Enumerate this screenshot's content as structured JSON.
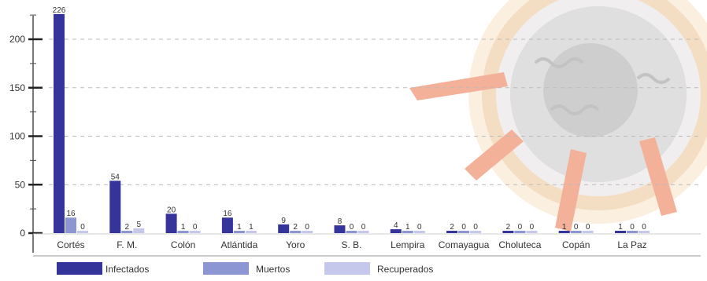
{
  "chart_data": {
    "type": "bar",
    "categories": [
      "Cortés",
      "F. M.",
      "Colón",
      "Atlántida",
      "Yoro",
      "S. B.",
      "Lempira",
      "Comayagua",
      "Choluteca",
      "Copán",
      "La Paz"
    ],
    "series": [
      {
        "name": "Infectados",
        "color": "#34349a",
        "values": [
          226,
          54,
          20,
          16,
          9,
          8,
          4,
          2,
          2,
          1,
          1
        ]
      },
      {
        "name": "Muertos",
        "color": "#8c96d2",
        "values": [
          16,
          2,
          1,
          1,
          2,
          0,
          1,
          0,
          0,
          0,
          0
        ]
      },
      {
        "name": "Recuperados",
        "color": "#c5c8ea",
        "values": [
          0,
          5,
          0,
          1,
          0,
          0,
          0,
          0,
          0,
          0,
          0
        ]
      }
    ],
    "yticks": [
      0,
      50,
      100,
      150,
      200
    ],
    "ylim": [
      0,
      235
    ],
    "grid": true,
    "legend_position": "bottom",
    "title": "",
    "xlabel": "",
    "ylabel": ""
  }
}
